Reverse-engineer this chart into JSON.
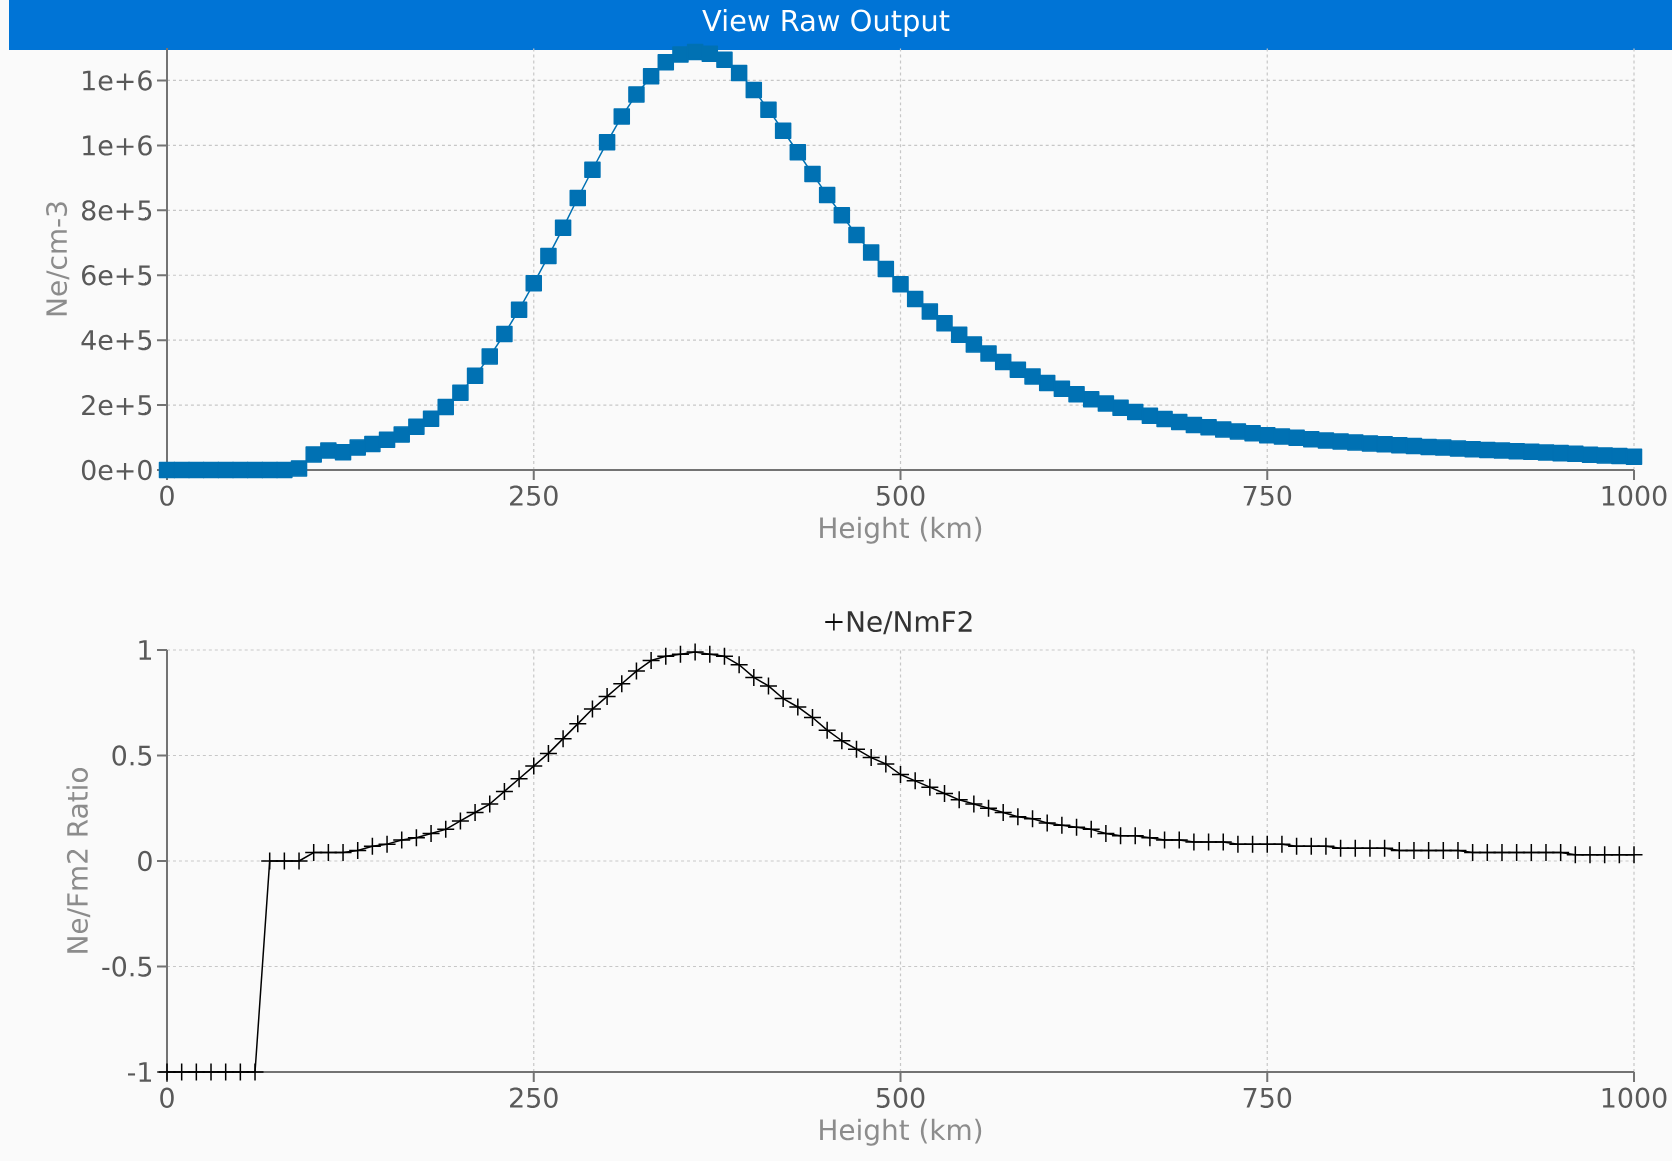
{
  "chart_data": [
    {
      "type": "line",
      "annotations": [
        "View Raw Output"
      ],
      "xlabel": "Height (km)",
      "ylabel": "Ne/cm-3",
      "x": [
        0,
        10,
        20,
        30,
        40,
        50,
        60,
        70,
        80,
        90,
        100,
        110,
        120,
        130,
        140,
        150,
        160,
        170,
        180,
        190,
        200,
        210,
        220,
        230,
        240,
        250,
        260,
        270,
        280,
        290,
        300,
        310,
        320,
        330,
        340,
        350,
        360,
        370,
        380,
        390,
        400,
        410,
        420,
        430,
        440,
        450,
        460,
        470,
        480,
        490,
        500,
        510,
        520,
        530,
        540,
        550,
        560,
        570,
        580,
        590,
        600,
        610,
        620,
        630,
        640,
        650,
        660,
        670,
        680,
        690,
        700,
        710,
        720,
        730,
        740,
        750,
        760,
        770,
        780,
        790,
        800,
        810,
        820,
        830,
        840,
        850,
        860,
        870,
        880,
        890,
        900,
        910,
        920,
        930,
        940,
        950,
        960,
        970,
        980,
        990,
        1000
      ],
      "series": [
        {
          "color": "#0071b3",
          "values": [
            0,
            0,
            0,
            0,
            0,
            0,
            0,
            0,
            0,
            5000,
            48000,
            60000,
            55000,
            69000,
            80000,
            93000,
            109000,
            133000,
            158000,
            194000,
            238000,
            290000,
            350000,
            419000,
            494000,
            575000,
            659000,
            746000,
            838000,
            925000,
            1010000,
            1089000,
            1157000,
            1213000,
            1256000,
            1280000,
            1288000,
            1282000,
            1264000,
            1223000,
            1171000,
            1110000,
            1045000,
            979000,
            912000,
            847000,
            785000,
            724000,
            670000,
            619000,
            572000,
            527000,
            488000,
            452000,
            417000,
            387000,
            359000,
            333000,
            309000,
            288000,
            268000,
            250000,
            233000,
            218000,
            205000,
            192000,
            179000,
            167000,
            157000,
            148000,
            139000,
            132000,
            125000,
            119000,
            113000,
            107000,
            103000,
            99000,
            95000,
            91000,
            88000,
            85000,
            82000,
            79000,
            76000,
            74000,
            71000,
            69000,
            66000,
            64000,
            62000,
            60000,
            58000,
            56000,
            54000,
            52000,
            50000,
            47000,
            45000,
            43000,
            41000
          ]
        }
      ],
      "xlim": [
        0,
        1000
      ],
      "ylim": [
        0,
        1300000
      ],
      "xticks": [
        0,
        250,
        500,
        750,
        1000
      ],
      "yticks": [
        {
          "value": 0,
          "label": "0e+0"
        },
        {
          "value": 200000,
          "label": "2e+5"
        },
        {
          "value": 400000,
          "label": "4e+5"
        },
        {
          "value": 600000,
          "label": "6e+5"
        },
        {
          "value": 800000,
          "label": "8e+5"
        },
        {
          "value": 1000000,
          "label": "1e+6"
        },
        {
          "value": 1200000,
          "label": "1e+6"
        }
      ],
      "grid": true,
      "marker": "square",
      "line_style": "solid"
    },
    {
      "type": "line",
      "xlabel": "Height (km)",
      "ylabel": "Ne/Fm2 Ratio",
      "x": [
        0,
        10,
        20,
        30,
        40,
        50,
        60,
        70,
        80,
        90,
        100,
        110,
        120,
        130,
        140,
        150,
        160,
        170,
        180,
        190,
        200,
        210,
        220,
        230,
        240,
        250,
        260,
        270,
        280,
        290,
        300,
        310,
        320,
        330,
        340,
        350,
        360,
        370,
        380,
        390,
        400,
        410,
        420,
        430,
        440,
        450,
        460,
        470,
        480,
        490,
        500,
        510,
        520,
        530,
        540,
        550,
        560,
        570,
        580,
        590,
        600,
        610,
        620,
        630,
        640,
        650,
        660,
        670,
        680,
        690,
        700,
        710,
        720,
        730,
        740,
        750,
        760,
        770,
        780,
        790,
        800,
        810,
        820,
        830,
        840,
        850,
        860,
        870,
        880,
        890,
        900,
        910,
        920,
        930,
        940,
        950,
        960,
        970,
        980,
        990,
        1000
      ],
      "series": [
        {
          "name": "Ne/NmF2",
          "color": "#000000",
          "values": [
            -1,
            -1,
            -1,
            -1,
            -1,
            -1,
            -1,
            0,
            0,
            0,
            0.04,
            0.04,
            0.04,
            0.05,
            0.07,
            0.08,
            0.1,
            0.11,
            0.13,
            0.15,
            0.19,
            0.23,
            0.27,
            0.33,
            0.39,
            0.45,
            0.51,
            0.58,
            0.65,
            0.72,
            0.78,
            0.84,
            0.9,
            0.95,
            0.97,
            0.98,
            0.99,
            0.98,
            0.97,
            0.93,
            0.87,
            0.83,
            0.77,
            0.73,
            0.68,
            0.62,
            0.57,
            0.53,
            0.49,
            0.46,
            0.41,
            0.38,
            0.35,
            0.32,
            0.29,
            0.27,
            0.25,
            0.23,
            0.21,
            0.2,
            0.18,
            0.17,
            0.16,
            0.15,
            0.13,
            0.12,
            0.12,
            0.11,
            0.1,
            0.1,
            0.09,
            0.09,
            0.09,
            0.08,
            0.08,
            0.08,
            0.08,
            0.07,
            0.07,
            0.07,
            0.06,
            0.06,
            0.06,
            0.06,
            0.05,
            0.05,
            0.05,
            0.05,
            0.05,
            0.04,
            0.04,
            0.04,
            0.04,
            0.04,
            0.04,
            0.04,
            0.03,
            0.03,
            0.03,
            0.03,
            0.03
          ]
        }
      ],
      "xlim": [
        0,
        1000
      ],
      "ylim": [
        -1,
        1
      ],
      "xticks": [
        0,
        250,
        500,
        750,
        1000
      ],
      "yticks": [
        -1,
        -0.5,
        0,
        0.5,
        1
      ],
      "grid": true,
      "legend": "top",
      "marker": "cross",
      "line_style": "solid"
    }
  ]
}
